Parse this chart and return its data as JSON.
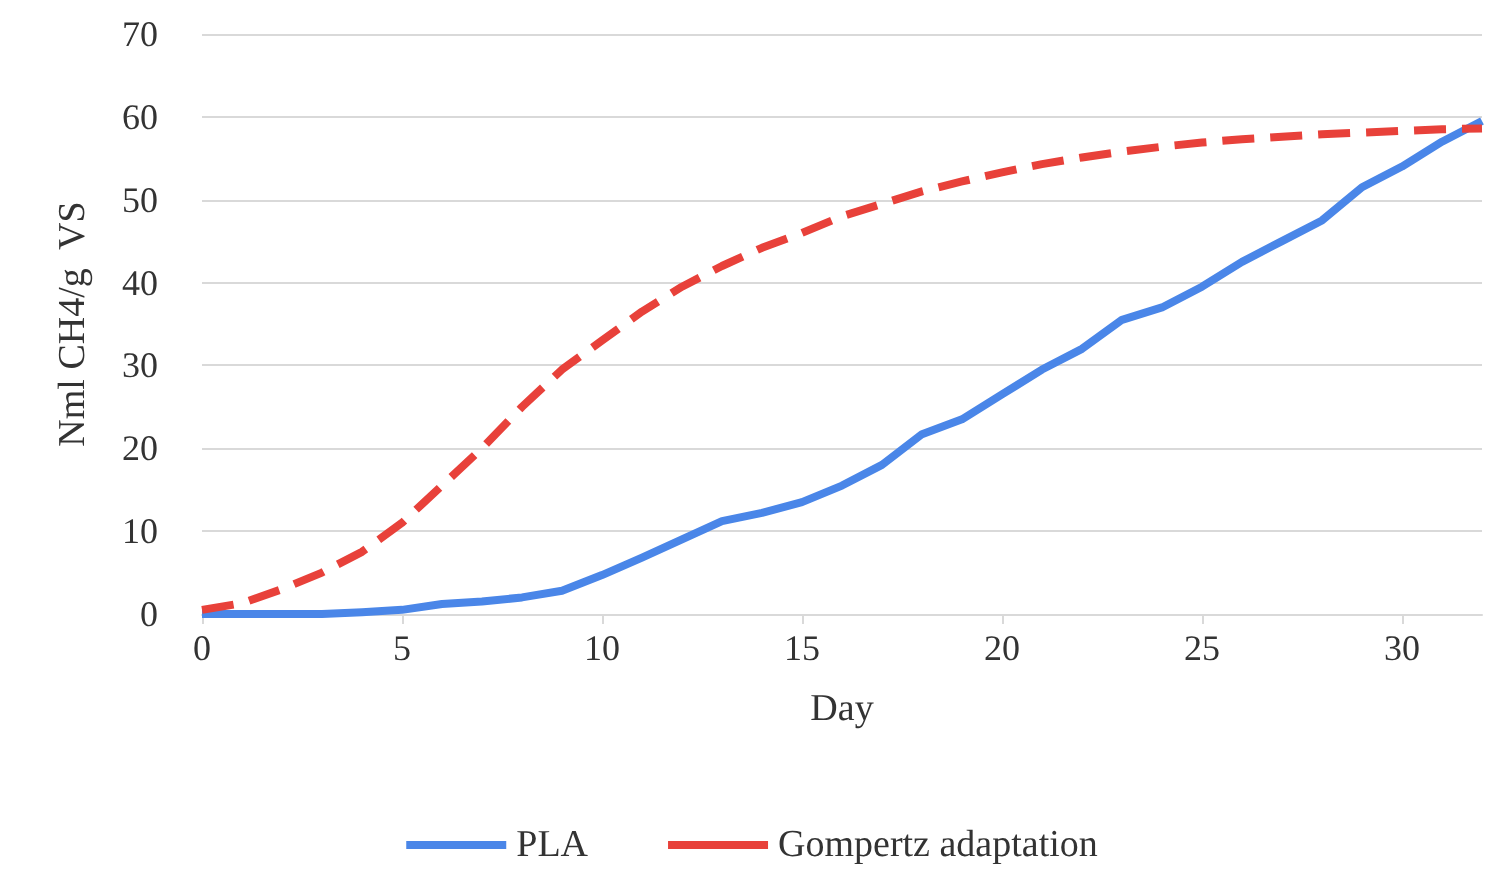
{
  "chart_data": {
    "type": "line",
    "xlabel": "Day",
    "ylabel": "Nml CH4/g  VS",
    "x": [
      0,
      1,
      2,
      3,
      4,
      5,
      6,
      7,
      8,
      9,
      10,
      11,
      12,
      13,
      14,
      15,
      16,
      17,
      18,
      19,
      20,
      21,
      22,
      23,
      24,
      25,
      26,
      27,
      28,
      29,
      30,
      31,
      32
    ],
    "series": [
      {
        "name": "PLA",
        "color": "#4a86e8",
        "line_style": "solid",
        "values": [
          0,
          0,
          0,
          0,
          0.2,
          0.5,
          1.2,
          1.5,
          2,
          2.8,
          4.7,
          6.8,
          9,
          11.2,
          12.2,
          13.5,
          15.5,
          18,
          21.7,
          23.5,
          26.5,
          29.5,
          32,
          35.5,
          37,
          39.5,
          42.5,
          45,
          47.5,
          51.5,
          54,
          57,
          59.5
        ]
      },
      {
        "name": "Gompertz adaptation",
        "color": "#e8413a",
        "line_style": "dashed",
        "values": [
          0.5,
          1.3,
          3,
          5,
          7.5,
          11,
          15.5,
          20,
          25,
          29.5,
          33,
          36.5,
          39.5,
          42,
          44.2,
          46,
          48,
          49.5,
          51,
          52.2,
          53.3,
          54.3,
          55.1,
          55.8,
          56.4,
          56.9,
          57.3,
          57.6,
          57.9,
          58.1,
          58.3,
          58.5,
          58.6
        ]
      }
    ],
    "xlim": [
      0,
      32
    ],
    "xticks": [
      0,
      5,
      10,
      15,
      20,
      25,
      30
    ],
    "ylim": [
      0,
      70
    ],
    "yticks": [
      0,
      10,
      20,
      30,
      40,
      50,
      60,
      70
    ],
    "grid": "y",
    "legend": "bottom",
    "marker": "none"
  }
}
